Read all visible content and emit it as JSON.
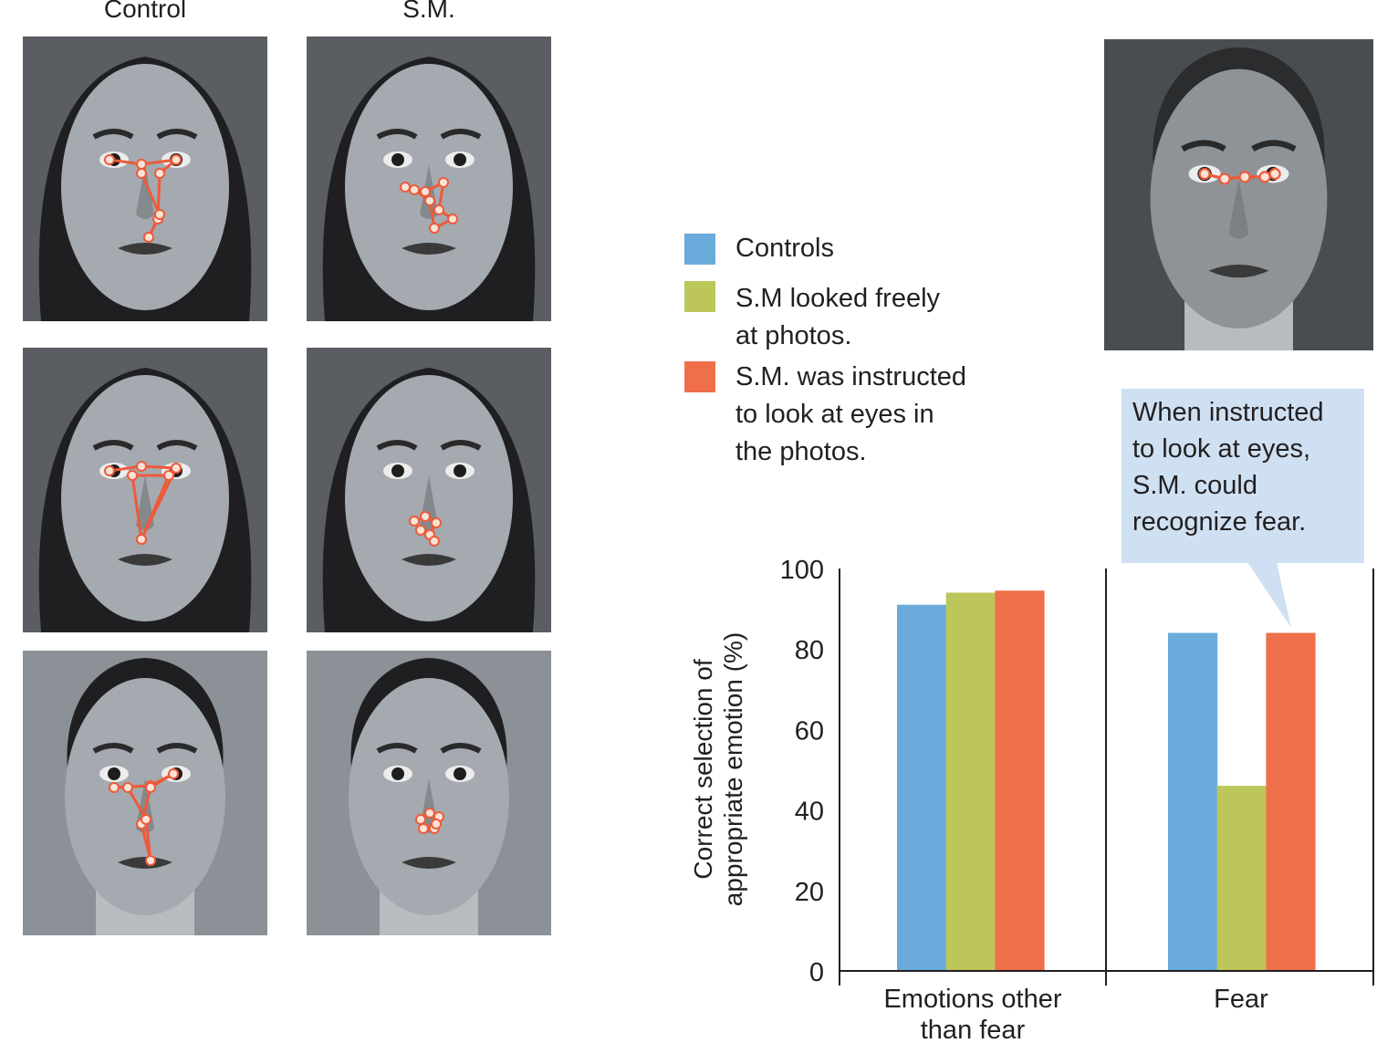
{
  "photo_panel": {
    "headers": [
      "Control",
      "S.M."
    ],
    "rows": [
      {
        "expression": "fear",
        "control_fixation": "eyes and nose",
        "sm_fixation": "nose"
      },
      {
        "expression": "sad",
        "control_fixation": "eyes and mouth",
        "sm_fixation": "nose"
      },
      {
        "expression": "fear",
        "control_fixation": "eyes, nose and mouth",
        "sm_fixation": "nose"
      }
    ],
    "example_photo": {
      "expression": "fear",
      "fixation": "eyes"
    }
  },
  "legend": {
    "items": [
      {
        "label_lines": [
          "Controls"
        ],
        "color": "#6aabdb"
      },
      {
        "label_lines": [
          "S.M looked freely",
          "at photos."
        ],
        "color": "#bcc65a"
      },
      {
        "label_lines": [
          "S.M. was instructed",
          "to look at eyes in",
          "the photos."
        ],
        "color": "#ef6f4b"
      }
    ]
  },
  "callout": {
    "lines": [
      "When instructed",
      "to look at eyes,",
      "S.M. could",
      "recognize fear."
    ],
    "color": "#cfe0f2"
  },
  "chart_data": {
    "type": "bar",
    "title": "",
    "xlabel": "",
    "ylabel": "Correct selection of appropriate emotion (%)",
    "ylabel_lines": [
      "Correct selection of",
      "appropriate emotion (%)"
    ],
    "ylim": [
      0,
      100
    ],
    "yticks": [
      0,
      20,
      40,
      60,
      80,
      100
    ],
    "grid": false,
    "legend_position": "top-left of chart",
    "categories": [
      "Emotions other than fear",
      "Fear"
    ],
    "category_label_lines": [
      [
        "Emotions other",
        "than fear"
      ],
      [
        "Fear"
      ]
    ],
    "series": [
      {
        "name": "Controls",
        "color": "#6aabdb",
        "values": [
          91,
          84
        ]
      },
      {
        "name": "S.M looked freely at photos.",
        "color": "#bcc65a",
        "values": [
          94,
          46
        ]
      },
      {
        "name": "S.M. was instructed to look at eyes in the photos.",
        "color": "#ef6f4b",
        "values": [
          94.5,
          84
        ]
      }
    ]
  }
}
